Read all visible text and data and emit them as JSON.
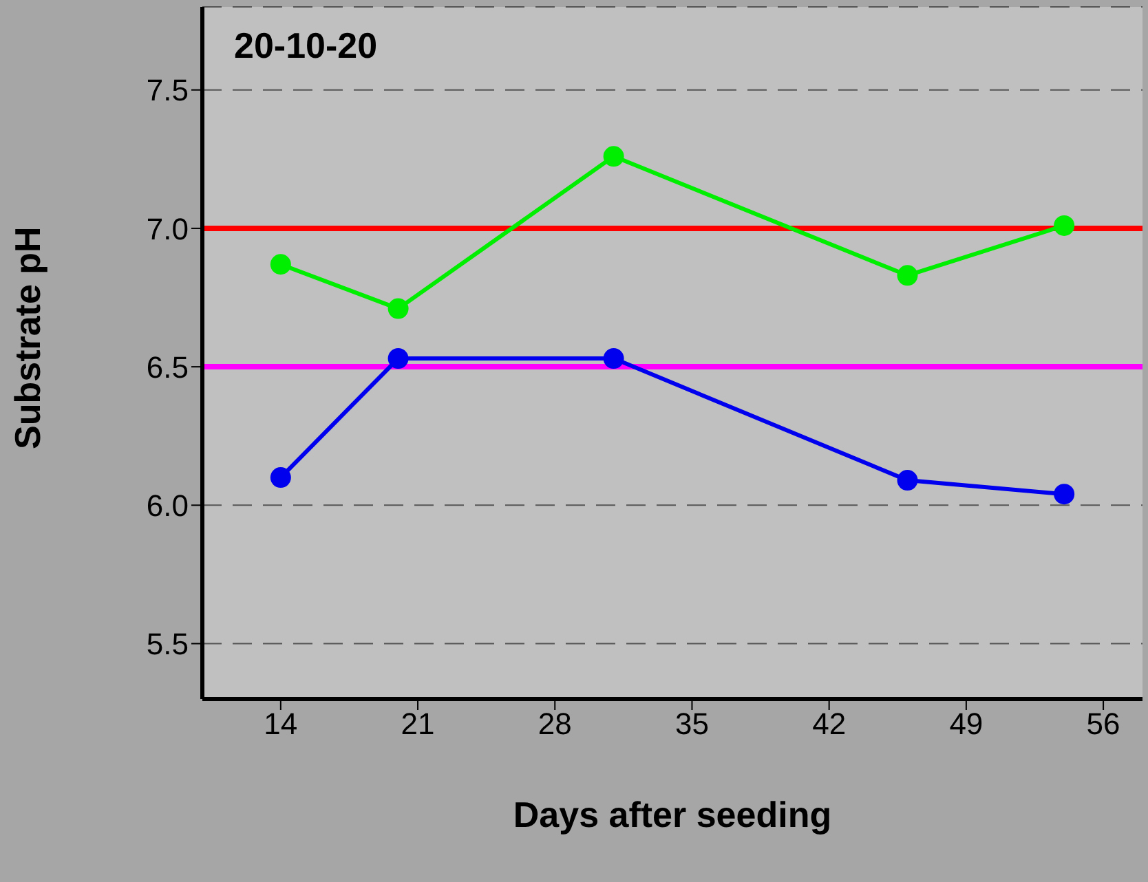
{
  "chart_data": {
    "type": "line",
    "title": "20-10-20",
    "xlabel": "Days after seeding",
    "ylabel": "Substrate pH",
    "x": [
      14,
      20,
      31,
      46,
      54
    ],
    "series": [
      {
        "color": "#00ee00",
        "values": [
          6.87,
          6.71,
          7.26,
          6.83,
          7.01
        ]
      },
      {
        "color": "#0000ee",
        "values": [
          6.1,
          6.53,
          6.53,
          6.09,
          6.04
        ]
      }
    ],
    "xlim": [
      10,
      58
    ],
    "xticks": [
      14,
      21,
      28,
      35,
      42,
      49,
      56
    ],
    "ylim": [
      5.3,
      7.8
    ],
    "yticks": [
      {
        "value": 5.5,
        "label": "5.5"
      },
      {
        "value": 6,
        "label": "6.0"
      },
      {
        "value": 6.5,
        "label": "6.5"
      },
      {
        "value": 7,
        "label": "7.0"
      },
      {
        "value": 7.5,
        "label": "7.5"
      }
    ],
    "ref_lines": [
      {
        "axis": "y",
        "value": 7,
        "color": "#ff0000"
      },
      {
        "axis": "y",
        "value": 6.5,
        "color": "#ff00ff"
      }
    ],
    "grid": "y",
    "legend": false,
    "marker": "circle",
    "line_style": "solid"
  }
}
